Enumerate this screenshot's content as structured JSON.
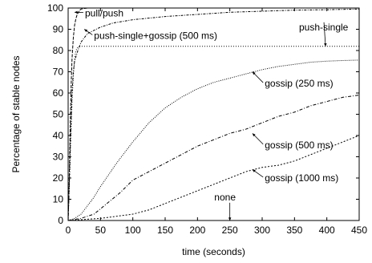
{
  "chart_data": {
    "type": "line",
    "xlabel": "time (seconds)",
    "ylabel": "Percentage of stable nodes",
    "xlim": [
      0,
      450
    ],
    "ylim": [
      0,
      100
    ],
    "xticks": [
      0,
      50,
      100,
      150,
      200,
      250,
      300,
      350,
      400,
      450
    ],
    "yticks": [
      0,
      10,
      20,
      30,
      40,
      50,
      60,
      70,
      80,
      90,
      100
    ],
    "grid": false,
    "series": [
      {
        "name": "pull/push",
        "dash": "4,1.5",
        "x": [
          0,
          1,
          2,
          3,
          4,
          5,
          6,
          8,
          10,
          12,
          14,
          16,
          18,
          20,
          25,
          30,
          40,
          60,
          450
        ],
        "y": [
          0,
          10,
          25,
          40,
          55,
          67,
          76,
          86,
          92,
          95,
          97,
          98,
          99,
          99.5,
          99.8,
          100,
          100,
          100,
          100
        ]
      },
      {
        "name": "push-single+gossip (500 ms)",
        "dash": "3,1.5,1,1.5",
        "x": [
          0,
          2,
          4,
          6,
          8,
          10,
          15,
          20,
          30,
          50,
          70,
          100,
          150,
          200,
          250,
          300,
          350,
          400,
          450
        ],
        "y": [
          0,
          20,
          42,
          60,
          70,
          75,
          80,
          84,
          88,
          91,
          93,
          94.5,
          96,
          97,
          98,
          98.5,
          99,
          99.2,
          99.5
        ]
      },
      {
        "name": "push-single",
        "dash": "1,2",
        "x": [
          0,
          2,
          4,
          6,
          8,
          10,
          12,
          15,
          20,
          30,
          450
        ],
        "y": [
          0,
          18,
          38,
          56,
          68,
          76,
          80,
          81.5,
          82,
          82,
          82
        ]
      },
      {
        "name": "gossip (250 ms)",
        "dash": "1,1.5",
        "x": [
          0,
          10,
          20,
          30,
          40,
          50,
          75,
          100,
          125,
          150,
          175,
          200,
          225,
          250,
          275,
          300,
          325,
          350,
          375,
          400,
          425,
          450
        ],
        "y": [
          0,
          1,
          3,
          7,
          11,
          16,
          27,
          37,
          46,
          53,
          58,
          62,
          65,
          67,
          69,
          71,
          72.5,
          73.5,
          74.5,
          75,
          75.3,
          75.5
        ]
      },
      {
        "name": "gossip (500 ms)",
        "dash": "4,2,1,2",
        "x": [
          0,
          20,
          40,
          60,
          80,
          100,
          125,
          150,
          175,
          200,
          225,
          250,
          275,
          300,
          325,
          350,
          375,
          400,
          425,
          450
        ],
        "y": [
          0,
          1,
          3,
          8,
          13,
          19,
          23,
          27,
          31,
          35,
          38,
          41,
          43,
          46,
          49,
          51,
          54,
          56,
          58,
          59
        ]
      },
      {
        "name": "gossip (1000 ms)",
        "dash": "2,2",
        "x": [
          0,
          50,
          75,
          100,
          125,
          150,
          175,
          200,
          225,
          250,
          275,
          300,
          325,
          350,
          375,
          400,
          425,
          450
        ],
        "y": [
          0,
          1,
          2,
          3,
          5,
          8,
          11,
          14,
          17,
          20,
          23,
          25,
          26,
          28,
          31,
          34,
          37,
          40
        ]
      },
      {
        "name": "none",
        "dash": "1,1",
        "x": [
          0,
          450
        ],
        "y": [
          0,
          0
        ]
      }
    ],
    "annotations": [
      {
        "text": "pull/push",
        "x": 26,
        "y": 96,
        "point": [
          10,
          98
        ]
      },
      {
        "text": "push-single+gossip (500 ms)",
        "x": 40,
        "y": 85.5,
        "point": [
          25,
          90
        ]
      },
      {
        "text": "push-single",
        "x": 357,
        "y": 89.5,
        "point": [
          398,
          82
        ]
      },
      {
        "text": "gossip (250 ms)",
        "x": 304,
        "y": 63,
        "point": [
          285,
          70
        ]
      },
      {
        "text": "gossip (500 ms)",
        "x": 304,
        "y": 34,
        "point": [
          285,
          41
        ]
      },
      {
        "text": "gossip (1000 ms)",
        "x": 304,
        "y": 18.5,
        "point": [
          285,
          24
        ]
      },
      {
        "text": "none",
        "x": 226,
        "y": 9.5,
        "point": [
          250,
          0
        ]
      }
    ]
  }
}
